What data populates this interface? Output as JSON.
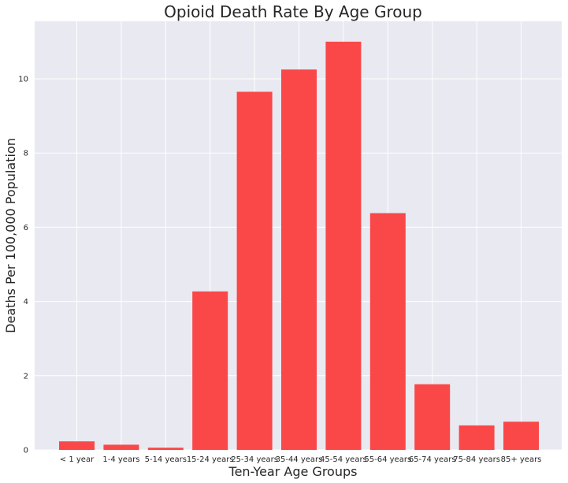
{
  "chart_data": {
    "type": "bar",
    "title": "Opioid Death Rate By Age Group",
    "xlabel": "Ten-Year Age Groups",
    "ylabel": "Deaths Per 100,000 Population",
    "categories": [
      "< 1 year",
      "1-4 years",
      "5-14 years",
      "15-24 years",
      "25-34 years",
      "35-44 years",
      "45-54 years",
      "55-64 years",
      "65-74 years",
      "75-84 years",
      "85+ years"
    ],
    "values": [
      0.23,
      0.14,
      0.06,
      4.27,
      9.65,
      10.25,
      11.0,
      6.38,
      1.77,
      0.66,
      0.76
    ],
    "ylim": [
      0,
      11.55
    ],
    "yticks": [
      "0",
      "2",
      "4",
      "6",
      "8",
      "10"
    ],
    "grid": true,
    "colors": {
      "bar": "#fa4747",
      "plot_bg": "#e9e9f1",
      "grid": "#ffffff"
    }
  }
}
